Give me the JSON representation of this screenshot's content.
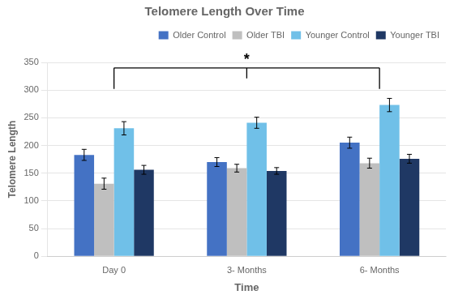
{
  "chart_data": {
    "type": "bar",
    "title": "Telomere Length Over Time",
    "xlabel": "Time",
    "ylabel": "Telomere Length",
    "categories": [
      "Day 0",
      "3- Months",
      "6- Months"
    ],
    "series": [
      {
        "name": "Older Control",
        "color": "#4472C4",
        "values": [
          183,
          170,
          205
        ],
        "errors": [
          10,
          8,
          10
        ]
      },
      {
        "name": "Older TBI",
        "color": "#BFBFBF",
        "values": [
          131,
          159,
          168
        ],
        "errors": [
          10,
          7,
          9
        ]
      },
      {
        "name": "Younger Control",
        "color": "#70C0E8",
        "values": [
          231,
          241,
          273
        ],
        "errors": [
          12,
          10,
          12
        ]
      },
      {
        "name": "Younger TBI",
        "color": "#1F3864",
        "values": [
          156,
          154,
          176
        ],
        "errors": [
          8,
          6,
          8
        ]
      }
    ],
    "ylim": [
      0,
      350
    ],
    "yticks": [
      0,
      50,
      100,
      150,
      200,
      250,
      300,
      350
    ],
    "grid": true,
    "legend": "upper right",
    "annotations": [
      {
        "text": "*",
        "x": "3- Months",
        "y": 340,
        "bracket": {
          "from": "Day 0",
          "to": "6- Months",
          "y": 340,
          "drop_to": 302
        }
      }
    ]
  }
}
